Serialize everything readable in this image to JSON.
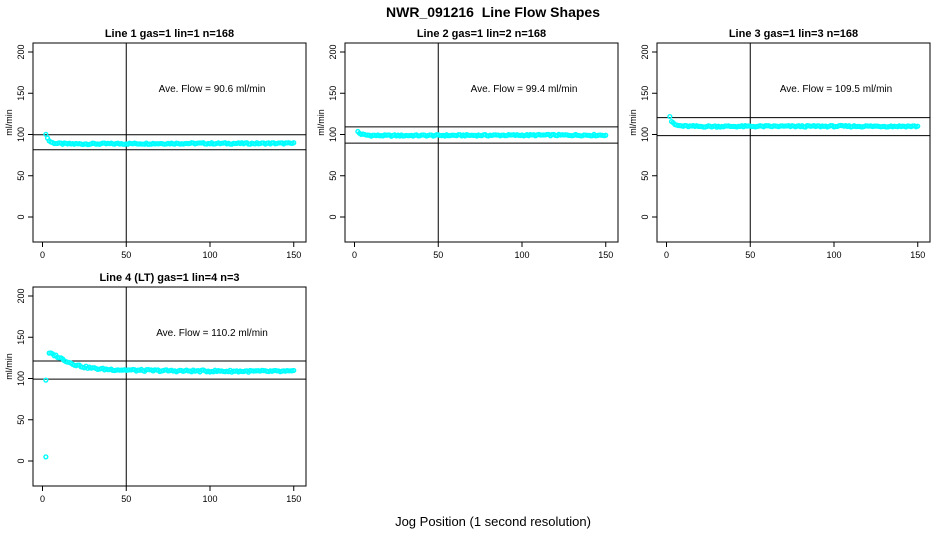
{
  "page": {
    "main_title": "NWR_091216  Line Flow Shapes",
    "x_axis_label": "Jog Position (1 second resolution)",
    "background_color": "#FFFFFF",
    "point_color": "#00FFFF",
    "axis_color": "#000000"
  },
  "chart_data": [
    {
      "type": "scatter",
      "title": "Line 1 gas=1 lin=1 n=168",
      "ylabel": "ml/min",
      "ave_flow": 90.6,
      "annotation": "Ave. Flow =  90.6  ml/min",
      "xlim": [
        0,
        150
      ],
      "ylim": [
        0,
        200
      ],
      "xticks": [
        0,
        50,
        100,
        150
      ],
      "yticks": [
        0,
        50,
        100,
        150,
        200
      ],
      "vline_x": 50,
      "hlines": [
        99.7,
        81.5
      ],
      "x_start": 2,
      "x_end": 150,
      "x_step": 1,
      "noise": 0.9,
      "profile": [
        [
          2,
          101
        ],
        [
          3,
          95.5
        ],
        [
          4,
          92.5
        ],
        [
          5,
          91
        ],
        [
          6,
          90
        ],
        [
          8,
          89.3
        ],
        [
          12,
          88.8
        ],
        [
          20,
          88.6
        ],
        [
          40,
          88.8
        ],
        [
          80,
          89.2
        ],
        [
          120,
          89.2
        ],
        [
          150,
          89.3
        ]
      ],
      "outliers": []
    },
    {
      "type": "scatter",
      "title": "Line 2 gas=1 lin=2 n=168",
      "ylabel": "ml/min",
      "ave_flow": 99.4,
      "annotation": "Ave. Flow =  99.4  ml/min",
      "xlim": [
        0,
        150
      ],
      "ylim": [
        0,
        200
      ],
      "xticks": [
        0,
        50,
        100,
        150
      ],
      "yticks": [
        0,
        50,
        100,
        150,
        200
      ],
      "vline_x": 50,
      "hlines": [
        109.3,
        89.5
      ],
      "x_start": 2,
      "x_end": 150,
      "x_step": 1,
      "noise": 0.9,
      "profile": [
        [
          2,
          103.5
        ],
        [
          3,
          101.5
        ],
        [
          4,
          100.5
        ],
        [
          5,
          100
        ],
        [
          7,
          99.3
        ],
        [
          10,
          98.9
        ],
        [
          20,
          98.7
        ],
        [
          50,
          98.9
        ],
        [
          100,
          99.2
        ],
        [
          150,
          99.3
        ]
      ],
      "outliers": []
    },
    {
      "type": "scatter",
      "title": "Line 3 gas=1 lin=3 n=168",
      "ylabel": "ml/min",
      "ave_flow": 109.5,
      "annotation": "Ave. Flow =  109.5  ml/min",
      "xlim": [
        0,
        150
      ],
      "ylim": [
        0,
        200
      ],
      "xticks": [
        0,
        50,
        100,
        150
      ],
      "yticks": [
        0,
        50,
        100,
        150,
        200
      ],
      "vline_x": 50,
      "hlines": [
        120.5,
        98.6
      ],
      "x_start": 2,
      "x_end": 150,
      "x_step": 1,
      "noise": 0.9,
      "profile": [
        [
          2,
          122
        ],
        [
          3,
          116
        ],
        [
          4,
          113.5
        ],
        [
          5,
          112
        ],
        [
          7,
          110.8
        ],
        [
          10,
          110.2
        ],
        [
          20,
          109.8
        ],
        [
          50,
          109.9
        ],
        [
          100,
          110
        ],
        [
          150,
          110
        ]
      ],
      "outliers": []
    },
    {
      "type": "scatter",
      "title": "Line 4 (LT) gas=1 lin=4 n=3",
      "ylabel": "ml/min",
      "ave_flow": 110.2,
      "annotation": "Ave. Flow =  110.2  ml/min",
      "xlim": [
        0,
        150
      ],
      "ylim": [
        0,
        200
      ],
      "xticks": [
        0,
        50,
        100,
        150
      ],
      "yticks": [
        0,
        50,
        100,
        150,
        200
      ],
      "vline_x": 50,
      "hlines": [
        121.2,
        99.2
      ],
      "x_start": 4,
      "x_end": 150,
      "x_step": 1,
      "noise": 1.2,
      "profile": [
        [
          4,
          130.5
        ],
        [
          5,
          130
        ],
        [
          6,
          129.5
        ],
        [
          8,
          127.5
        ],
        [
          10,
          125.5
        ],
        [
          13,
          122.5
        ],
        [
          16,
          119.5
        ],
        [
          20,
          116.5
        ],
        [
          25,
          114
        ],
        [
          30,
          112.5
        ],
        [
          35,
          111.5
        ],
        [
          40,
          111
        ],
        [
          50,
          110.3
        ],
        [
          60,
          109.8
        ],
        [
          80,
          109.3
        ],
        [
          100,
          109
        ],
        [
          120,
          108.8
        ],
        [
          150,
          108.6
        ]
      ],
      "outliers": [
        [
          2,
          98
        ],
        [
          2,
          5
        ]
      ]
    }
  ]
}
